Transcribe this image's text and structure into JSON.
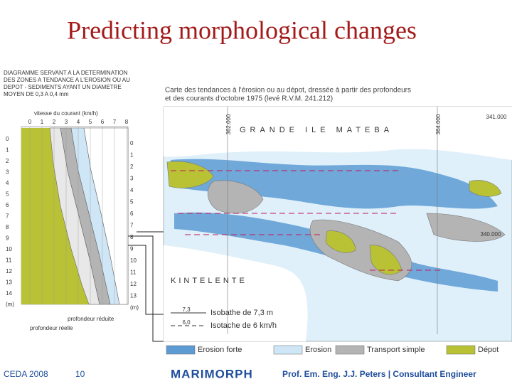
{
  "title": "Predicting morphological changes",
  "diagram": {
    "caption": [
      "DIAGRAMME SERVANT A LA DETERMINATION",
      "DES ZONES A TENDANCE A L'EROSION OU AU",
      "DEPOT - SEDIMENTS AYANT UN DIAMETRE",
      "MOYEN DE 0,3 A 0,4 mm"
    ],
    "velocity_label": "vitesse du courant (km/h)",
    "velocity_ticks": [
      "0",
      "1",
      "2",
      "3",
      "4",
      "5",
      "6",
      "7",
      "8"
    ],
    "depth_left": [
      "0",
      "1",
      "2",
      "3",
      "4",
      "5",
      "6",
      "7",
      "8",
      "9",
      "10",
      "11",
      "12",
      "13",
      "14",
      "(m)"
    ],
    "depth_right": [
      "0",
      "1",
      "2",
      "3",
      "4",
      "5",
      "6",
      "7",
      "8",
      "9",
      "10",
      "11",
      "12",
      "13",
      "(m)"
    ],
    "reduced_depth": "profondeur réduite",
    "real_depth": "profondeur réelle"
  },
  "map": {
    "title": [
      "Carte des tendances à l'érosion ou au dépot, dressée à partir des profondeurs",
      "et des courants d'octobre 1975 (levé R.V.M. 241.212)"
    ],
    "island": "GRANDE ILE MATEBA",
    "shore": "KINTELENTE",
    "coords": [
      "362.000",
      "364.000",
      "341.000",
      "340.000"
    ],
    "key": [
      {
        "value": "7,3",
        "label": "Isobathe de 7,3 m"
      },
      {
        "value": "6,0",
        "label": "Isotache de 6 km/h"
      }
    ]
  },
  "legend": [
    {
      "label": "Erosion forte",
      "color": "#5d9bd3"
    },
    {
      "label": "Erosion",
      "color": "#cfe6f6"
    },
    {
      "label": "Transport simple",
      "color": "#b4b4b4"
    },
    {
      "label": "Dépot",
      "color": "#b8c234"
    }
  ],
  "footer": {
    "event": "CEDA 2008",
    "page": "10",
    "logo": "MARIMORPH",
    "author": "Prof. Em. Eng. J.J. Peters | Consultant Engineer"
  }
}
